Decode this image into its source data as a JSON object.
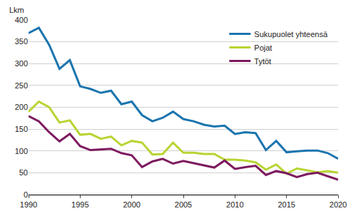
{
  "chart_data": {
    "type": "line",
    "y_label": "Lkm",
    "x": [
      1990,
      1991,
      1992,
      1993,
      1994,
      1995,
      1996,
      1997,
      1998,
      1999,
      2000,
      2001,
      2002,
      2003,
      2004,
      2005,
      2006,
      2007,
      2008,
      2009,
      2010,
      2011,
      2012,
      2013,
      2014,
      2015,
      2016,
      2017,
      2018,
      2019,
      2020
    ],
    "series": [
      {
        "name": "Sukupuolet yhteensä",
        "color": "#1b75ae",
        "values": [
          370,
          382,
          343,
          288,
          308,
          248,
          242,
          233,
          238,
          207,
          213,
          182,
          168,
          176,
          190,
          173,
          168,
          160,
          156,
          158,
          139,
          143,
          141,
          102,
          123,
          97,
          99,
          101,
          101,
          95,
          82
        ]
      },
      {
        "name": "Pojat",
        "color": "#b8d432",
        "values": [
          190,
          213,
          200,
          165,
          170,
          137,
          139,
          128,
          133,
          113,
          123,
          119,
          92,
          93,
          119,
          96,
          96,
          93,
          93,
          80,
          80,
          78,
          74,
          57,
          69,
          48,
          60,
          55,
          51,
          54,
          50
        ]
      },
      {
        "name": "Tytöt",
        "color": "#7e1a5f",
        "values": [
          180,
          168,
          143,
          122,
          139,
          111,
          102,
          104,
          105,
          95,
          90,
          63,
          76,
          82,
          71,
          77,
          72,
          68,
          62,
          78,
          59,
          63,
          66,
          45,
          54,
          49,
          40,
          47,
          50,
          42,
          34
        ]
      }
    ],
    "xlim": [
      1990,
      2020
    ],
    "xticks": [
      1990,
      1995,
      2000,
      2005,
      2010,
      2015,
      2020
    ],
    "ylim": [
      0,
      400
    ],
    "yticks": [
      0,
      50,
      100,
      150,
      200,
      250,
      300,
      350,
      400
    ],
    "grid": true,
    "legend": "upper right"
  }
}
